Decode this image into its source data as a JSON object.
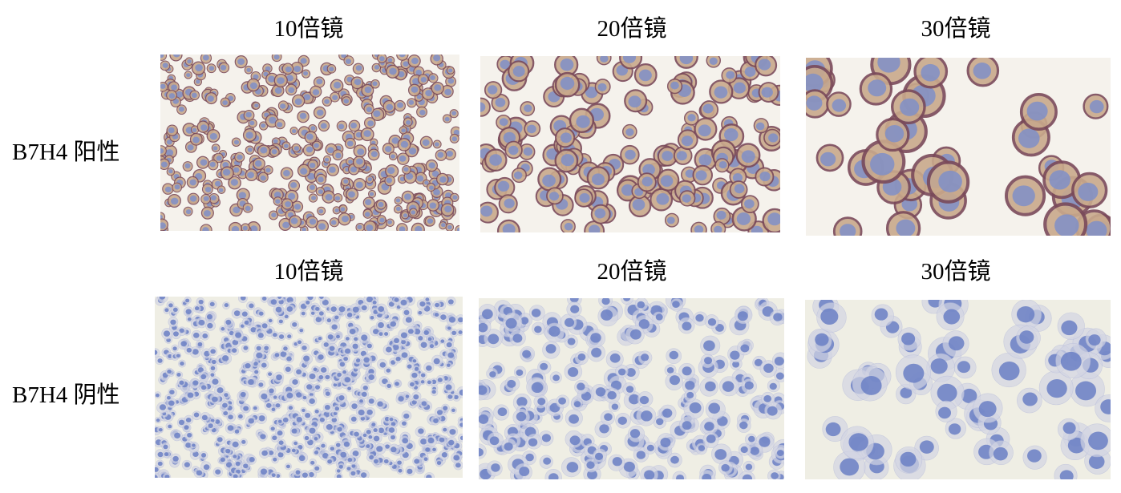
{
  "columns": [
    "10倍镜",
    "20倍镜",
    "30倍镜"
  ],
  "rows": [
    {
      "label": "B7H4 阳性",
      "stain": "positive",
      "background": "#f5f2ec",
      "membrane": "#7a4a5a",
      "cytoplasm": "#c9a98c",
      "nucleus": "#7f8fc8"
    },
    {
      "label": "B7H4 阴性",
      "stain": "negative",
      "background": "#efeee4",
      "membrane": "#b9bedb",
      "cytoplasm": "#d3d5e3",
      "nucleus": "#6a7fc4"
    }
  ]
}
